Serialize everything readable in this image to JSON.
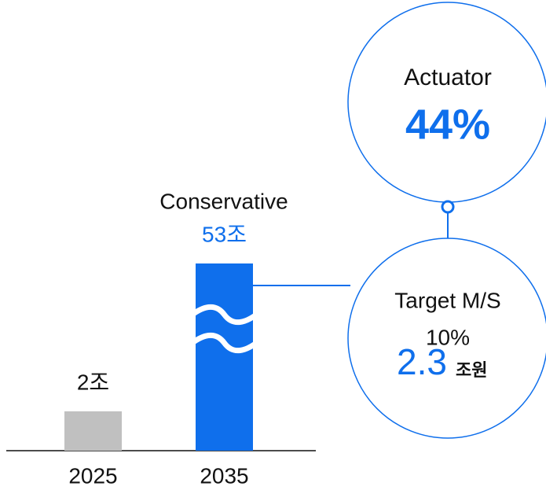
{
  "chart_data": {
    "type": "bar",
    "categories": [
      "2025",
      "2035"
    ],
    "values": [
      2,
      53
    ],
    "value_labels": [
      "2조",
      "53조"
    ],
    "colors": [
      "#c0c0c0",
      "#0f6fec"
    ],
    "label_colors": [
      "#111111",
      "#0f6fec"
    ],
    "series_label": "Conservative",
    "annotations": {
      "actuator": {
        "label": "Actuator",
        "share": "44%"
      },
      "target": {
        "label": "Target M/S",
        "share": "10%",
        "value": "2.3",
        "unit": "조원"
      }
    }
  }
}
